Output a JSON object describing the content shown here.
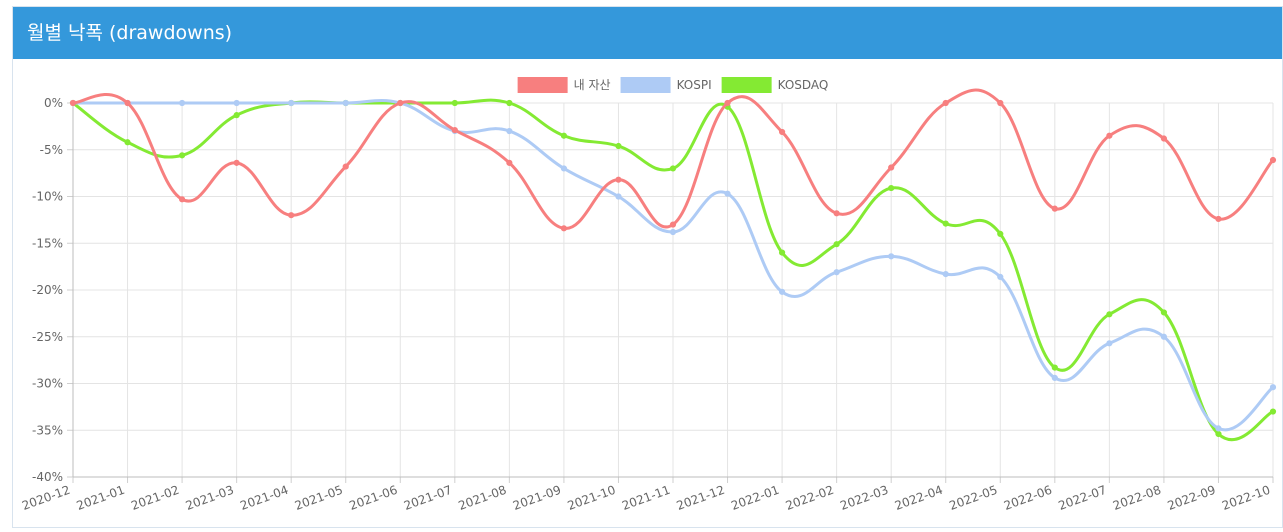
{
  "panel": {
    "title": "월별 낙폭 (drawdowns)"
  },
  "chart_data": {
    "type": "line",
    "title": "",
    "xlabel": "",
    "ylabel": "",
    "categories": [
      "2020-12",
      "2021-01",
      "2021-02",
      "2021-03",
      "2021-04",
      "2021-05",
      "2021-06",
      "2021-07",
      "2021-08",
      "2021-09",
      "2021-10",
      "2021-11",
      "2021-12",
      "2022-01",
      "2022-02",
      "2022-03",
      "2022-04",
      "2022-05",
      "2022-06",
      "2022-07",
      "2022-08",
      "2022-09",
      "2022-10"
    ],
    "ylim": [
      -40,
      0
    ],
    "yticks": [
      "0%",
      "-5%",
      "-10%",
      "-15%",
      "-20%",
      "-25%",
      "-30%",
      "-35%",
      "-40%"
    ],
    "grid": true,
    "legend_position": "top-center",
    "series": [
      {
        "name": "내 자산",
        "color": "#f77f7f",
        "values": [
          0,
          0,
          -10.3,
          -6.4,
          -12.0,
          -6.8,
          0,
          -2.9,
          -6.4,
          -13.4,
          -8.2,
          -13.0,
          0,
          -3.1,
          -11.8,
          -6.9,
          0,
          0,
          -11.3,
          -3.5,
          -3.8,
          -12.4,
          -6.1
        ]
      },
      {
        "name": "KOSPI",
        "color": "#aecbf5",
        "values": [
          0,
          0,
          0,
          0,
          0,
          0,
          0,
          -3.0,
          -3.0,
          -7.0,
          -10.0,
          -13.8,
          -9.7,
          -20.2,
          -18.1,
          -16.4,
          -18.3,
          -18.6,
          -29.4,
          -25.7,
          -25.0,
          -34.8,
          -30.4
        ]
      },
      {
        "name": "KOSDAQ",
        "color": "#84ea33",
        "values": [
          0,
          -4.2,
          -5.6,
          -1.3,
          0,
          0,
          0,
          0,
          0,
          -3.5,
          -4.6,
          -7.0,
          -0.4,
          -16.0,
          -15.1,
          -9.1,
          -12.9,
          -14.0,
          -28.3,
          -22.6,
          -22.4,
          -35.4,
          -33.0
        ]
      }
    ]
  }
}
